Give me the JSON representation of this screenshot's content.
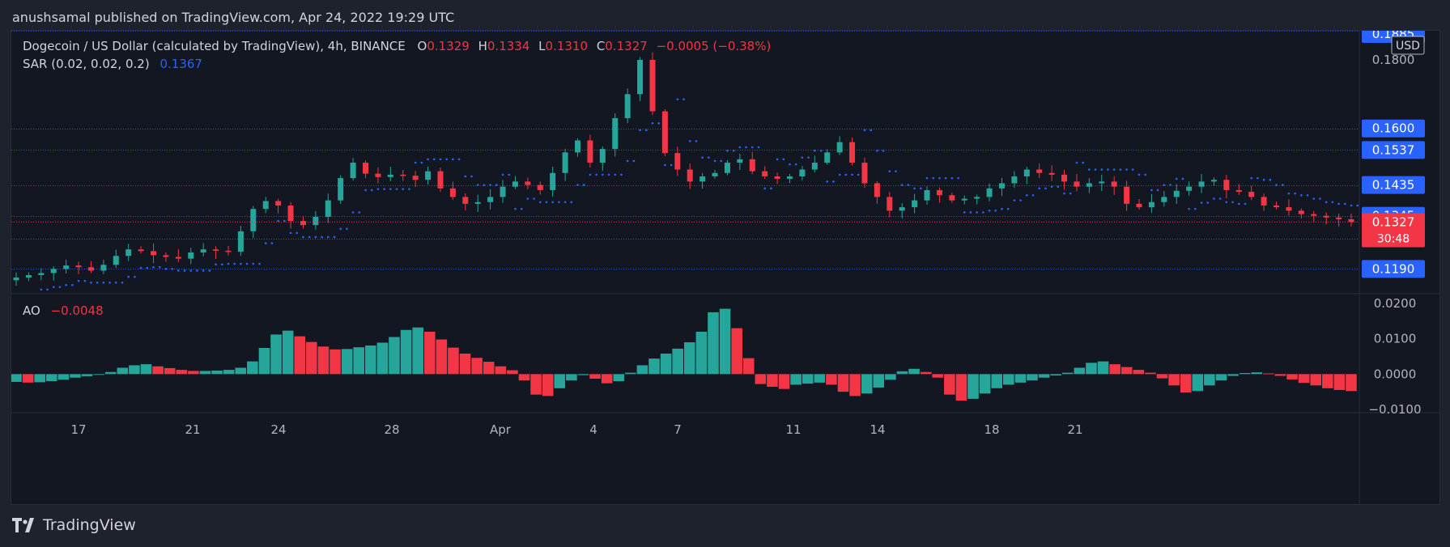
{
  "header": {
    "attribution": "anushsamal published on TradingView.com, Apr 24, 2022 19:29 UTC"
  },
  "legend": {
    "symbol": "Dogecoin / US Dollar (calculated by TradingView), 4h, BINANCE",
    "o_label": "O",
    "o_value": "0.1329",
    "h_label": "H",
    "h_value": "0.1334",
    "l_label": "L",
    "l_value": "0.1310",
    "c_label": "C",
    "c_value": "0.1327",
    "change": "−0.0005 (−0.38%)",
    "sar_label": "SAR (0.02, 0.02, 0.2)",
    "sar_value": "0.1367",
    "ao_label": "AO",
    "ao_value": "−0.0048"
  },
  "footer": {
    "brand": "TradingView"
  },
  "colors": {
    "up": "#26a69a",
    "down": "#f23645",
    "sar": "#2962ff",
    "bg": "#131722",
    "grid": "#2a2e39"
  },
  "chart_data": [
    {
      "type": "candlestick",
      "title": "Dogecoin / US Dollar (calculated by TradingView), 4h, BINANCE",
      "unit": "USD",
      "ylim": [
        0.112,
        0.1885
      ],
      "price_axis_labels": [
        "0.1885",
        "0.1800",
        "0.1600",
        "0.1537",
        "0.1435",
        "0.1345",
        "0.1327",
        "0.1279",
        "0.1190"
      ],
      "current_price": "0.1327",
      "countdown": "30:48",
      "horizontal_levels": [
        0.1885,
        0.16,
        0.1537,
        0.1435,
        0.1345,
        0.1279,
        0.119
      ],
      "x_ticks": [
        "17",
        "21",
        "24",
        "28",
        "Apr",
        "4",
        "7",
        "11",
        "14",
        "18",
        "21"
      ],
      "close_path": [
        0.1165,
        0.1172,
        0.1178,
        0.119,
        0.12,
        0.1195,
        0.1185,
        0.1202,
        0.1228,
        0.1247,
        0.1242,
        0.123,
        0.1225,
        0.122,
        0.1238,
        0.1247,
        0.1243,
        0.124,
        0.13,
        0.1365,
        0.1388,
        0.1375,
        0.133,
        0.1318,
        0.1342,
        0.139,
        0.1455,
        0.15,
        0.1468,
        0.1458,
        0.1465,
        0.1462,
        0.145,
        0.1475,
        0.1425,
        0.14,
        0.138,
        0.1385,
        0.14,
        0.143,
        0.1445,
        0.1435,
        0.142,
        0.147,
        0.153,
        0.1565,
        0.15,
        0.154,
        0.163,
        0.17,
        0.18,
        0.165,
        0.1528,
        0.148,
        0.1445,
        0.146,
        0.147,
        0.15,
        0.151,
        0.1475,
        0.146,
        0.1453,
        0.146,
        0.148,
        0.15,
        0.153,
        0.156,
        0.15,
        0.144,
        0.14,
        0.136,
        0.137,
        0.139,
        0.142,
        0.1405,
        0.139,
        0.1395,
        0.14,
        0.1425,
        0.144,
        0.146,
        0.148,
        0.147,
        0.1465,
        0.1445,
        0.143,
        0.144,
        0.1445,
        0.143,
        0.138,
        0.137,
        0.1385,
        0.14,
        0.1418,
        0.143,
        0.1445,
        0.145,
        0.142,
        0.1415,
        0.14,
        0.1375,
        0.137,
        0.136,
        0.135,
        0.1345,
        0.134,
        0.1335,
        0.1327
      ],
      "indicators": [
        {
          "name": "SAR (0.02, 0.02, 0.2)",
          "last_value": "0.1367",
          "color": "#2962ff"
        }
      ]
    },
    {
      "type": "bar",
      "title": "AO",
      "last_value": "−0.0048",
      "ylim": [
        -0.01,
        0.02
      ],
      "y_ticks": [
        "0.0200",
        "0.0100",
        "0.0000",
        "−0.0100"
      ],
      "series": [
        {
          "name": "AO",
          "values": [
            -0.0022,
            -0.0024,
            -0.0023,
            -0.002,
            -0.0016,
            -0.001,
            -0.0006,
            -0.0002,
            0.0006,
            0.0018,
            0.0025,
            0.0028,
            0.0022,
            0.0017,
            0.0012,
            0.0009,
            0.0009,
            0.001,
            0.0012,
            0.0018,
            0.0036,
            0.0074,
            0.0112,
            0.0123,
            0.0107,
            0.0091,
            0.0078,
            0.007,
            0.0071,
            0.0076,
            0.0081,
            0.0089,
            0.0105,
            0.0125,
            0.0132,
            0.012,
            0.0098,
            0.0075,
            0.0058,
            0.0046,
            0.0035,
            0.0022,
            0.0011,
            -0.0018,
            -0.0058,
            -0.0062,
            -0.004,
            -0.0018,
            -0.0003,
            -0.0013,
            -0.0026,
            -0.002,
            0.0004,
            0.0025,
            0.0044,
            0.0058,
            0.0072,
            0.009,
            0.012,
            0.0175,
            0.0185,
            0.013,
            0.0045,
            -0.0028,
            -0.0036,
            -0.0042,
            -0.003,
            -0.0027,
            -0.0024,
            -0.003,
            -0.005,
            -0.0062,
            -0.0055,
            -0.0038,
            -0.0016,
            0.0008,
            0.0015,
            0.0006,
            -0.001,
            -0.0058,
            -0.0075,
            -0.007,
            -0.0055,
            -0.004,
            -0.003,
            -0.0024,
            -0.0018,
            -0.001,
            -0.0004,
            0.0004,
            0.0018,
            0.0032,
            0.0036,
            0.0028,
            0.002,
            0.0012,
            0.0004,
            -0.0012,
            -0.0032,
            -0.0052,
            -0.0048,
            -0.0032,
            -0.0018,
            -0.0005,
            0.0003,
            0.0005,
            0.0002,
            -0.0005,
            -0.0015,
            -0.0025,
            -0.0032,
            -0.004,
            -0.0045,
            -0.0048
          ]
        }
      ]
    }
  ]
}
